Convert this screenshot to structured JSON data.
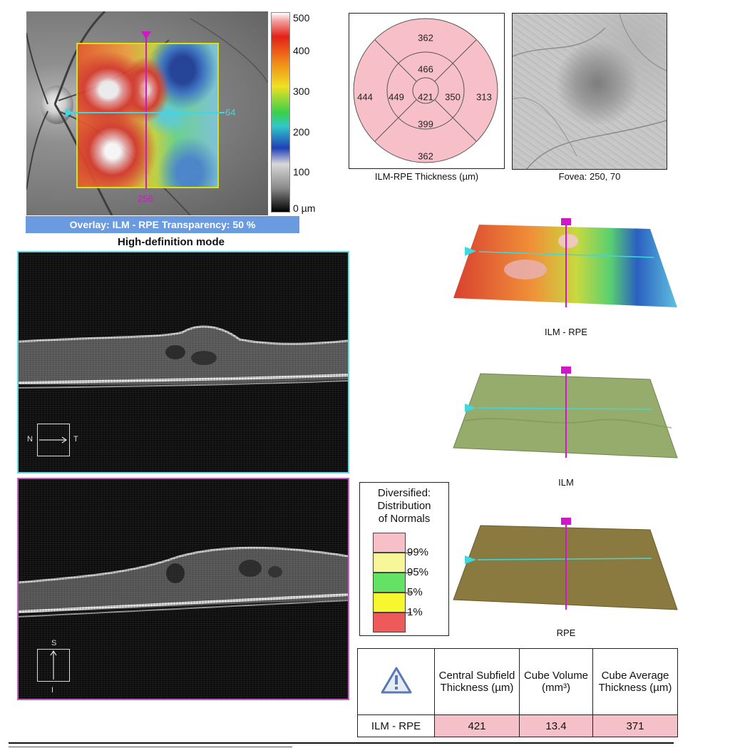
{
  "fundus": {
    "h_value": "64",
    "v_value": "256",
    "scale_ticks": [
      "500",
      "400",
      "300",
      "200",
      "100",
      "0 µm"
    ],
    "overlay_bar": "Overlay: ILM - RPE  Transparency: 50 %",
    "mode_title": "High-definition mode"
  },
  "etdrs": {
    "outer": {
      "superior": "362",
      "nasal": "444",
      "temporal": "313",
      "inferior": "362"
    },
    "inner": {
      "superior": "466",
      "nasal": "449",
      "temporal": "350",
      "inferior": "399"
    },
    "center": "421",
    "caption": "ILM-RPE Thickness (µm)"
  },
  "fovea": {
    "caption": "Fovea: 250, 70"
  },
  "oct1": {
    "left_label": "N",
    "right_label": "T"
  },
  "oct2": {
    "top_label": "S",
    "bottom_label": "I"
  },
  "surfaces": [
    {
      "caption": "ILM - RPE"
    },
    {
      "caption": "ILM"
    },
    {
      "caption": "RPE"
    }
  ],
  "legend": {
    "title": "Diversified:\nDistribution\nof Normals",
    "levels": [
      {
        "label": "99%",
        "color": "#f7c0c8"
      },
      {
        "label": "95%",
        "color": "#f7f79a"
      },
      {
        "label": "5%",
        "color": "#64e264"
      },
      {
        "label": "1%",
        "color": "#f7f730"
      },
      {
        "label": "",
        "color": "#ee5a5a"
      }
    ]
  },
  "summary": {
    "headers": [
      "Central Subfield Thickness (µm)",
      "Cube Volume (mm³)",
      "Cube Average Thickness (µm)"
    ],
    "row_label": "ILM - RPE",
    "values": [
      "421",
      "13.4",
      "371"
    ],
    "highlight_color": "#f6c0c8"
  },
  "colors": {
    "horizontal_scan": "#3fd8e0",
    "vertical_scan": "#d018c8",
    "overlay_bar": "#6a9ae0"
  }
}
